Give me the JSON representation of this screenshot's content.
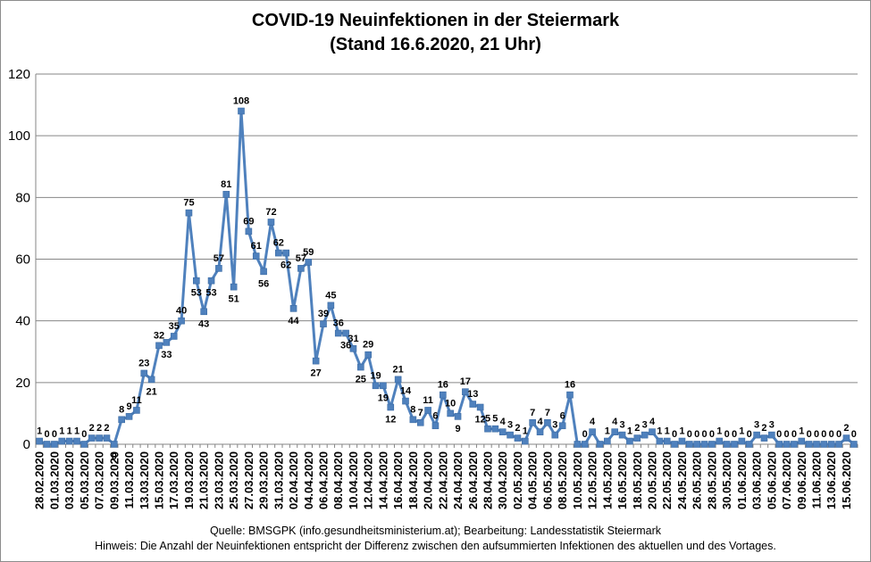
{
  "chart_data": {
    "type": "line",
    "title": "COVID-19 Neuinfektionen in der Steiermark",
    "subtitle": "(Stand 16.6.2020, 21 Uhr)",
    "ylim": [
      0,
      120
    ],
    "yticks": [
      0,
      20,
      40,
      60,
      80,
      100,
      120
    ],
    "x": [
      "28.02.2020",
      "29.02.2020",
      "01.03.2020",
      "02.03.2020",
      "03.03.2020",
      "04.03.2020",
      "05.03.2020",
      "06.03.2020",
      "07.03.2020",
      "08.03.2020",
      "09.03.2020",
      "10.03.2020",
      "11.03.2020",
      "12.03.2020",
      "13.03.2020",
      "14.03.2020",
      "15.03.2020",
      "16.03.2020",
      "17.03.2020",
      "18.03.2020",
      "19.03.2020",
      "20.03.2020",
      "21.03.2020",
      "22.03.2020",
      "23.03.2020",
      "24.03.2020",
      "25.03.2020",
      "26.03.2020",
      "27.03.2020",
      "28.03.2020",
      "29.03.2020",
      "30.03.2020",
      "31.03.2020",
      "01.04.2020",
      "02.04.2020",
      "03.04.2020",
      "04.04.2020",
      "05.04.2020",
      "06.04.2020",
      "07.04.2020",
      "08.04.2020",
      "09.04.2020",
      "10.04.2020",
      "11.04.2020",
      "12.04.2020",
      "13.04.2020",
      "14.04.2020",
      "15.04.2020",
      "16.04.2020",
      "17.04.2020",
      "18.04.2020",
      "19.04.2020",
      "20.04.2020",
      "21.04.2020",
      "22.04.2020",
      "23.04.2020",
      "24.04.2020",
      "25.04.2020",
      "26.04.2020",
      "27.04.2020",
      "28.04.2020",
      "29.04.2020",
      "30.04.2020",
      "01.05.2020",
      "02.05.2020",
      "03.05.2020",
      "04.05.2020",
      "05.05.2020",
      "06.05.2020",
      "07.05.2020",
      "08.05.2020",
      "09.05.2020",
      "10.05.2020",
      "11.05.2020",
      "12.05.2020",
      "13.05.2020",
      "14.05.2020",
      "15.05.2020",
      "16.05.2020",
      "17.05.2020",
      "18.05.2020",
      "19.05.2020",
      "20.05.2020",
      "21.05.2020",
      "22.05.2020",
      "23.05.2020",
      "24.05.2020",
      "25.05.2020",
      "26.05.2020",
      "27.05.2020",
      "28.05.2020",
      "29.05.2020",
      "30.05.2020",
      "31.05.2020",
      "01.06.2020",
      "02.06.2020",
      "03.06.2020",
      "04.06.2020",
      "05.06.2020",
      "06.06.2020",
      "07.06.2020",
      "08.06.2020",
      "09.06.2020",
      "10.06.2020",
      "11.06.2020",
      "12.06.2020",
      "13.06.2020",
      "14.06.2020",
      "15.06.2020",
      "16.06.2020"
    ],
    "x_ticks_shown_every": 2,
    "values": [
      1,
      0,
      0,
      1,
      1,
      1,
      0,
      2,
      2,
      2,
      0,
      8,
      9,
      11,
      23,
      21,
      32,
      33,
      35,
      40,
      75,
      53,
      43,
      53,
      57,
      81,
      51,
      108,
      69,
      61,
      56,
      72,
      62,
      62,
      44,
      57,
      59,
      27,
      39,
      45,
      36,
      36,
      31,
      25,
      29,
      19,
      19,
      12,
      21,
      14,
      8,
      7,
      11,
      6,
      16,
      10,
      9,
      17,
      13,
      12,
      5,
      5,
      4,
      3,
      2,
      1,
      7,
      4,
      7,
      3,
      6,
      16,
      0,
      0,
      4,
      0,
      1,
      4,
      3,
      1,
      2,
      3,
      4,
      1,
      1,
      0,
      1,
      0,
      0,
      0,
      0,
      1,
      0,
      0,
      1,
      0,
      3,
      2,
      3,
      0,
      0,
      0,
      1,
      0,
      0,
      0,
      0,
      0,
      2,
      0
    ],
    "labels_shown": [
      1,
      1,
      1,
      1,
      1,
      1,
      1,
      1,
      1,
      1,
      1,
      1,
      1,
      1,
      1,
      1,
      1,
      1,
      1,
      1,
      1,
      1,
      1,
      1,
      1,
      1,
      1,
      1,
      1,
      1,
      1,
      1,
      1,
      1,
      1,
      1,
      1,
      1,
      1,
      1,
      1,
      1,
      1,
      1,
      1,
      1,
      1,
      1,
      1,
      1,
      1,
      1,
      1,
      1,
      1,
      1,
      1,
      1,
      1,
      1,
      1,
      1,
      1,
      1,
      1,
      1,
      1,
      1,
      1,
      1,
      1,
      1,
      0,
      1,
      1,
      0,
      1,
      1,
      1,
      1,
      1,
      1,
      1,
      1,
      1,
      1,
      1,
      1,
      1,
      1,
      1,
      1,
      1,
      1,
      1,
      1,
      1,
      1,
      1,
      1,
      1,
      1,
      1,
      1,
      1,
      1,
      1,
      1,
      1,
      1
    ],
    "label_position": [
      "a",
      "a",
      "a",
      "a",
      "a",
      "a",
      "a",
      "a",
      "a",
      "a",
      "b",
      "a",
      "a",
      "a",
      "a",
      "b",
      "a",
      "b",
      "a",
      "a",
      "a",
      "b",
      "b",
      "b",
      "a",
      "a",
      "b",
      "a",
      "a",
      "a",
      "b",
      "a",
      "a",
      "b",
      "b",
      "a",
      "a",
      "b",
      "a",
      "a",
      "a",
      "b",
      "a",
      "b",
      "a",
      "a",
      "b",
      "b",
      "a",
      "a",
      "a",
      "a",
      "a",
      "a",
      "a",
      "a",
      "b",
      "a",
      "a",
      "b",
      "a",
      "a",
      "a",
      "a",
      "a",
      "a",
      "a",
      "a",
      "a",
      "a",
      "a",
      "a",
      "a",
      "a",
      "a",
      "a",
      "a",
      "a",
      "a",
      "a",
      "a",
      "a",
      "a",
      "a",
      "a",
      "a",
      "a",
      "a",
      "a",
      "a",
      "a",
      "a",
      "a",
      "a",
      "a",
      "a",
      "a",
      "a",
      "a",
      "a",
      "a",
      "a",
      "a",
      "a",
      "a",
      "a",
      "a",
      "a",
      "a",
      "a"
    ],
    "line_color": "#4f81bd",
    "grid": "horizontal",
    "legend": "none",
    "footer": [
      "Quelle: BMSGPK (info.gesundheitsministerium.at); Bearbeitung: Landesstatistik Steiermark",
      "Hinweis: Die Anzahl der Neuinfektionen entspricht der Differenz zwischen den aufsummierten Infektionen des aktuellen und des Vortages."
    ]
  }
}
